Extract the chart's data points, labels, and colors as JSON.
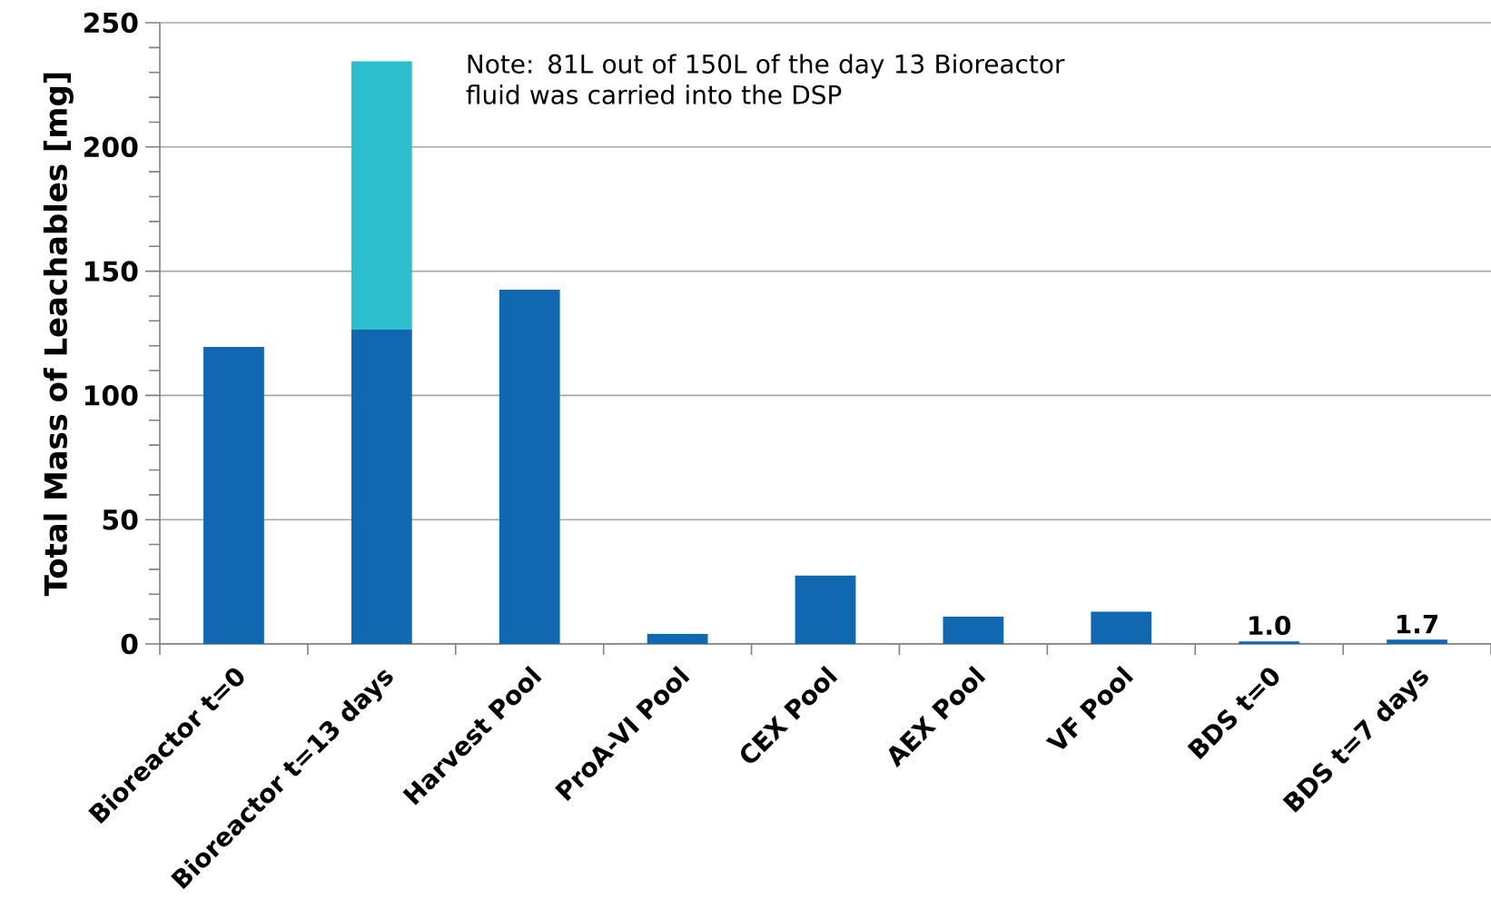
{
  "chart_data": {
    "type": "bar",
    "stacked": true,
    "ylabel": "Total Mass of Leachables [mg]",
    "categories": [
      "Bioreactor t=0",
      "Bioreactor t=13 days",
      "Harvest Pool",
      "ProA-VI Pool",
      "CEX Pool",
      "AEX Pool",
      "VF Pool",
      "BDS t=0",
      "BDS t=7 days"
    ],
    "series": [
      {
        "color": "#1068b0",
        "values": [
          119.5,
          126.5,
          142.5,
          4,
          27.5,
          11,
          13,
          1.0,
          1.7
        ],
        "value_labels": [
          null,
          null,
          null,
          null,
          null,
          null,
          null,
          "1.0",
          "1.7"
        ]
      },
      {
        "color": "#2dbecd",
        "values": [
          null,
          108,
          null,
          null,
          null,
          null,
          null,
          null,
          null
        ]
      }
    ],
    "ylim": [
      0,
      250
    ],
    "yticks": [
      0,
      50,
      100,
      150,
      200,
      250
    ],
    "grid": "y",
    "annotations": [
      "Note: 81L out of 150L of the day 13 Bioreactor fluid was carried into the DSP"
    ]
  }
}
